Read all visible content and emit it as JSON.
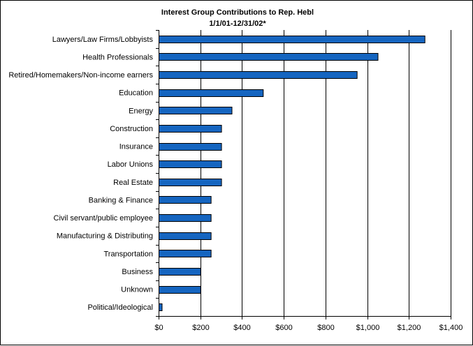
{
  "chart_data": {
    "type": "bar",
    "orientation": "horizontal",
    "title": "Interest Group Contributions to Rep. Hebl",
    "subtitle": "1/1/01-12/31/02*",
    "categories": [
      "Lawyers/Law Firms/Lobbyists",
      "Health Professionals",
      "Retired/Homemakers/Non-income earners",
      "Education",
      "Energy",
      "Construction",
      "Insurance",
      "Labor Unions",
      "Real Estate",
      "Banking & Finance",
      "Civil servant/public employee",
      "Manufacturing & Distributing",
      "Transportation",
      "Business",
      "Unknown",
      "Political/Ideological"
    ],
    "values": [
      1275,
      1050,
      950,
      500,
      350,
      300,
      300,
      300,
      300,
      250,
      250,
      250,
      250,
      200,
      200,
      15
    ],
    "xlim": [
      0,
      1400
    ],
    "xticks": [
      0,
      200,
      400,
      600,
      800,
      1000,
      1200,
      1400
    ],
    "xtick_labels": [
      "$0",
      "$200",
      "$400",
      "$600",
      "$800",
      "$1,000",
      "$1,200",
      "$1,400"
    ],
    "xlabel": "",
    "ylabel": "",
    "grid": "vertical",
    "legend": "none",
    "bar_color": "#1565c0"
  }
}
